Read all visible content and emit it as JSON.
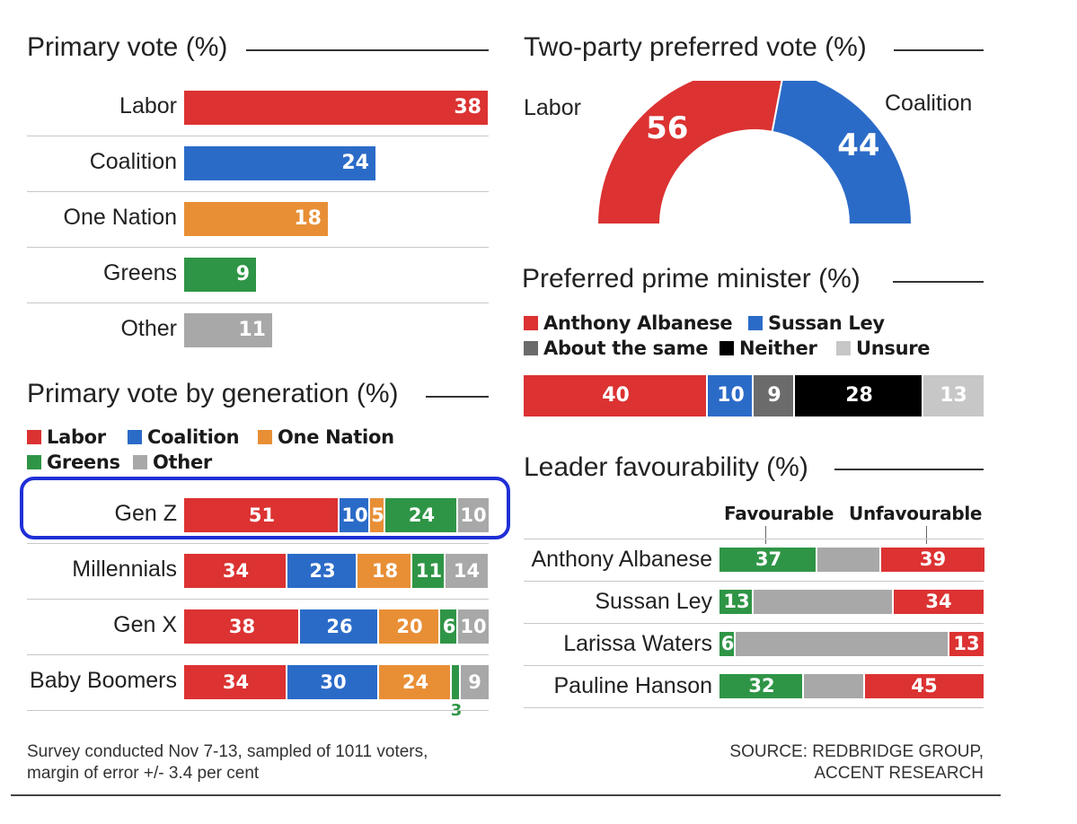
{
  "colors": {
    "labor": "#dc3232",
    "coalition": "#2b6bc8",
    "one_nation": "#e88f36",
    "greens": "#2f9546",
    "other": "#a8a8a8",
    "about_same": "#6b6b6b",
    "neither": "#000000",
    "unsure": "#c7c7c7",
    "annotation": "#1f2fd6"
  },
  "chart_data": [
    {
      "type": "bar",
      "title": "Primary vote (%)",
      "categories": [
        "Labor",
        "Coalition",
        "One Nation",
        "Greens",
        "Other"
      ],
      "values": [
        38,
        24,
        18,
        9,
        11
      ],
      "value_labels": [
        "38",
        "24",
        "18",
        "9",
        "11"
      ],
      "colors": [
        "#dc3232",
        "#2b6bc8",
        "#e88f36",
        "#2f9546",
        "#a8a8a8"
      ]
    },
    {
      "type": "pie",
      "subtype": "half-donut",
      "title": "Two-party preferred vote (%)",
      "slices": [
        {
          "name": "Labor",
          "value": 56,
          "value_label": "56",
          "color": "#dc3232"
        },
        {
          "name": "Coalition",
          "value": 44,
          "value_label": "44",
          "color": "#2b6bc8"
        }
      ]
    },
    {
      "type": "bar",
      "subtype": "stacked-horizontal",
      "title": "Preferred prime minister (%)",
      "legend": [
        "Anthony Albanese",
        "Sussan Ley",
        "About the same",
        "Neither",
        "Unsure"
      ],
      "series": [
        {
          "name": "Anthony Albanese",
          "values": [
            40
          ],
          "value_labels": [
            "40"
          ],
          "color": "#dc3232"
        },
        {
          "name": "Sussan Ley",
          "values": [
            10
          ],
          "value_labels": [
            "10"
          ],
          "color": "#2b6bc8"
        },
        {
          "name": "About the same",
          "values": [
            9
          ],
          "value_labels": [
            "9"
          ],
          "color": "#6b6b6b"
        },
        {
          "name": "Neither",
          "values": [
            28
          ],
          "value_labels": [
            "28"
          ],
          "color": "#000000"
        },
        {
          "name": "Unsure",
          "values": [
            13
          ],
          "value_labels": [
            "13"
          ],
          "color": "#c7c7c7"
        }
      ]
    },
    {
      "type": "bar",
      "subtype": "stacked-horizontal",
      "title": "Primary vote by generation (%)",
      "categories": [
        "Gen Z",
        "Millennials",
        "Gen X",
        "Baby Boomers"
      ],
      "legend": [
        "Labor",
        "Coalition",
        "One Nation",
        "Greens",
        "Other"
      ],
      "series": [
        {
          "name": "Labor",
          "values": [
            51,
            34,
            38,
            34
          ],
          "value_labels": [
            "51",
            "34",
            "38",
            "34"
          ],
          "color": "#dc3232"
        },
        {
          "name": "Coalition",
          "values": [
            10,
            23,
            26,
            30
          ],
          "value_labels": [
            "10",
            "23",
            "26",
            "30"
          ],
          "color": "#2b6bc8"
        },
        {
          "name": "One Nation",
          "values": [
            5,
            18,
            20,
            24
          ],
          "value_labels": [
            "5",
            "18",
            "20",
            "24"
          ],
          "color": "#e88f36"
        },
        {
          "name": "Greens",
          "values": [
            24,
            11,
            6,
            3
          ],
          "value_labels": [
            "24",
            "11",
            "6",
            "3"
          ],
          "color": "#2f9546"
        },
        {
          "name": "Other",
          "values": [
            10,
            14,
            10,
            9
          ],
          "value_labels": [
            "10",
            "14",
            "10",
            "9"
          ],
          "color": "#a8a8a8"
        }
      ]
    },
    {
      "type": "bar",
      "subtype": "stacked-horizontal",
      "title": "Leader favourability (%)",
      "categories": [
        "Anthony Albanese",
        "Sussan Ley",
        "Larissa Waters",
        "Pauline Hanson"
      ],
      "column_headers": [
        "Favourable",
        "Unfavourable"
      ],
      "series": [
        {
          "name": "Favourable",
          "values": [
            37,
            13,
            6,
            32
          ],
          "value_labels": [
            "37",
            "13",
            "6",
            "32"
          ],
          "color": "#2f9546"
        },
        {
          "name": "",
          "values": [
            24,
            53,
            81,
            23
          ],
          "color": "#a8a8a8"
        },
        {
          "name": "Unfavourable",
          "values": [
            39,
            34,
            13,
            45
          ],
          "value_labels": [
            "39",
            "34",
            "13",
            "45"
          ],
          "color": "#dc3232"
        }
      ]
    }
  ],
  "footnote": {
    "survey": "Survey conducted Nov 7-13,  sampled of 1011 voters,",
    "margin": "margin of error +/- 3.4 per cent",
    "source_line1": "SOURCE: REDBRIDGE GROUP,",
    "source_line2": "ACCENT RESEARCH"
  }
}
